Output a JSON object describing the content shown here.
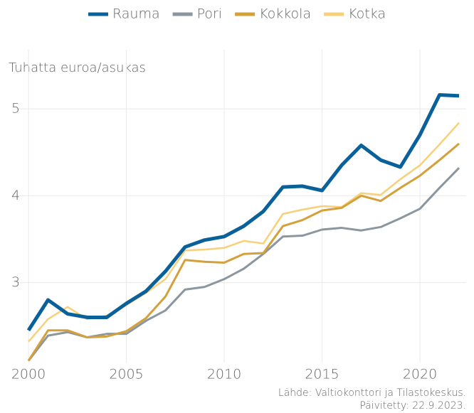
{
  "chart_data": {
    "type": "line",
    "y_label": "Tuhatta euroa/asukas",
    "source": [
      "Lähde: Valtiokonttori ja Tilastokeskus.",
      "Päivitetty: 22.9.2023."
    ],
    "x": [
      2000,
      2001,
      2002,
      2003,
      2004,
      2005,
      2006,
      2007,
      2008,
      2009,
      2010,
      2011,
      2012,
      2013,
      2014,
      2015,
      2016,
      2017,
      2018,
      2019,
      2020,
      2021,
      2022
    ],
    "series": [
      {
        "name": "Rauma",
        "color": "#0a6199",
        "values": [
          2.45,
          2.8,
          2.64,
          2.6,
          2.6,
          2.76,
          2.9,
          3.13,
          3.41,
          3.49,
          3.53,
          3.65,
          3.82,
          4.1,
          4.11,
          4.06,
          4.35,
          4.58,
          4.41,
          4.33,
          4.7,
          5.16,
          5.15
        ]
      },
      {
        "name": "Pori",
        "color": "#8c969e",
        "values": [
          2.1,
          2.39,
          2.43,
          2.37,
          2.41,
          2.41,
          2.56,
          2.68,
          2.92,
          2.95,
          3.04,
          3.16,
          3.33,
          3.53,
          3.54,
          3.61,
          3.63,
          3.6,
          3.64,
          3.74,
          3.85,
          4.09,
          4.32
        ]
      },
      {
        "name": "Kokkola",
        "color": "#d4a03a",
        "values": [
          2.1,
          2.45,
          2.45,
          2.37,
          2.38,
          2.44,
          2.59,
          2.84,
          3.26,
          3.24,
          3.23,
          3.33,
          3.34,
          3.65,
          3.72,
          3.83,
          3.86,
          4.0,
          3.94,
          4.09,
          4.23,
          4.41,
          4.6
        ]
      },
      {
        "name": "Kotka",
        "color": "#f8d07a",
        "values": [
          2.32,
          2.58,
          2.72,
          2.58,
          2.62,
          2.74,
          2.88,
          3.04,
          3.37,
          3.38,
          3.4,
          3.48,
          3.45,
          3.79,
          3.84,
          3.88,
          3.87,
          4.03,
          4.01,
          4.19,
          4.35,
          4.59,
          4.84
        ]
      }
    ],
    "xlim": [
      2000,
      2022
    ],
    "xticks": [
      2000,
      2005,
      2010,
      2015,
      2020
    ],
    "ylim": [
      2.08,
      5.68
    ],
    "yticks": [
      3,
      4,
      5
    ],
    "grid": true,
    "legend": "top"
  }
}
